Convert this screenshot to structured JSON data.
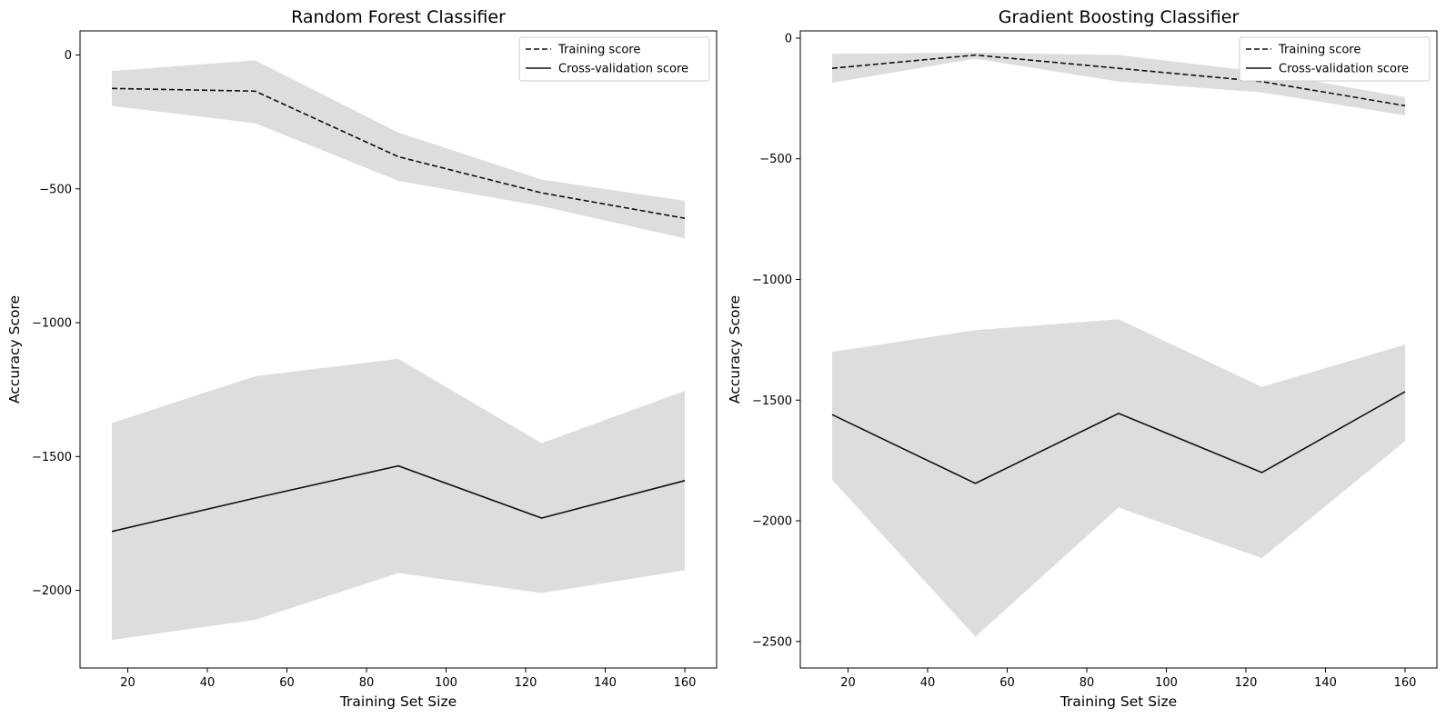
{
  "chart_data": [
    {
      "type": "line",
      "title": "Random Forest Classifier",
      "xlabel": "Training Set Size",
      "ylabel": "Accuracy Score",
      "xlim": [
        8,
        168
      ],
      "ylim": [
        -2290,
        90
      ],
      "xticks": [
        20,
        40,
        60,
        80,
        100,
        120,
        140,
        160
      ],
      "yticks": [
        0,
        -500,
        -1000,
        -1500,
        -2000
      ],
      "ytick_labels": [
        "0",
        "−500",
        "−1000",
        "−1500",
        "−2000"
      ],
      "grid": false,
      "legend_position": "upper right",
      "x": [
        16,
        52,
        88,
        124,
        160
      ],
      "series": [
        {
          "name": "Training score",
          "style": "dashed",
          "color": "#111111",
          "values": [
            -125,
            -135,
            -380,
            -515,
            -610
          ],
          "band_upper": [
            -60,
            -20,
            -290,
            -465,
            -545
          ],
          "band_lower": [
            -190,
            -255,
            -470,
            -565,
            -685
          ]
        },
        {
          "name": "Cross-validation score",
          "style": "solid",
          "color": "#111111",
          "values": [
            -1780,
            -1655,
            -1535,
            -1730,
            -1590
          ],
          "band_upper": [
            -1375,
            -1200,
            -1135,
            -1450,
            -1255
          ],
          "band_lower": [
            -2185,
            -2110,
            -1935,
            -2010,
            -1925
          ]
        }
      ]
    },
    {
      "type": "line",
      "title": "Gradient Boosting Classifier",
      "xlabel": "Training Set Size",
      "ylabel": "Accuracy Score",
      "xlim": [
        8,
        168
      ],
      "ylim": [
        -2610,
        30
      ],
      "xticks": [
        20,
        40,
        60,
        80,
        100,
        120,
        140,
        160
      ],
      "yticks": [
        0,
        -500,
        -1000,
        -1500,
        -2000,
        -2500
      ],
      "ytick_labels": [
        "0",
        "−500",
        "−1000",
        "−1500",
        "−2000",
        "−2500"
      ],
      "grid": false,
      "legend_position": "upper right",
      "x": [
        16,
        52,
        88,
        124,
        160
      ],
      "series": [
        {
          "name": "Training score",
          "style": "dashed",
          "color": "#111111",
          "values": [
            -125,
            -70,
            -125,
            -180,
            -280
          ],
          "band_upper": [
            -65,
            -60,
            -70,
            -140,
            -245
          ],
          "band_lower": [
            -185,
            -85,
            -180,
            -225,
            -320
          ]
        },
        {
          "name": "Cross-validation score",
          "style": "solid",
          "color": "#111111",
          "values": [
            -1560,
            -1845,
            -1555,
            -1800,
            -1465
          ],
          "band_upper": [
            -1300,
            -1210,
            -1165,
            -1445,
            -1270
          ],
          "band_lower": [
            -1830,
            -2480,
            -1945,
            -2155,
            -1670
          ]
        }
      ]
    }
  ],
  "style": {
    "band_color": "#dddddd",
    "line_color": "#111111",
    "axis_color": "#000000"
  }
}
